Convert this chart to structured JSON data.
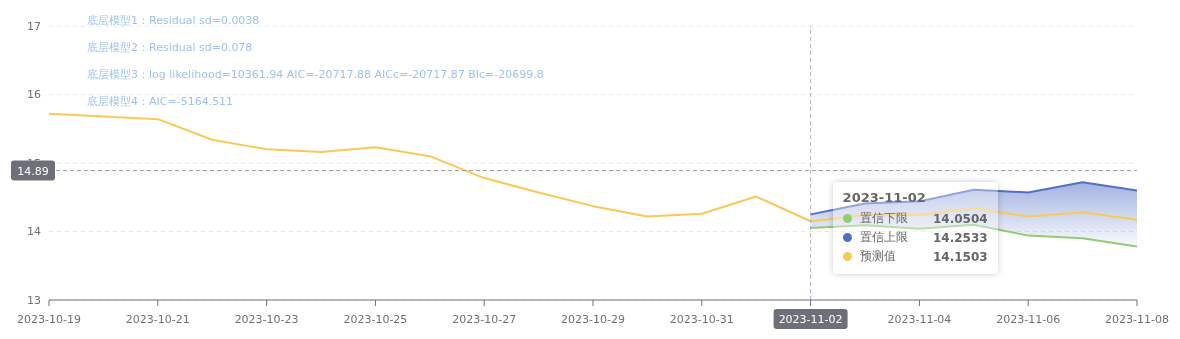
{
  "chart_data": {
    "type": "line",
    "x": [
      "2023-10-19",
      "2023-10-20",
      "2023-10-21",
      "2023-10-22",
      "2023-10-23",
      "2023-10-24",
      "2023-10-25",
      "2023-10-26",
      "2023-10-27",
      "2023-10-28",
      "2023-10-29",
      "2023-10-30",
      "2023-10-31",
      "2023-11-01",
      "2023-11-02",
      "2023-11-03",
      "2023-11-04",
      "2023-11-05",
      "2023-11-06",
      "2023-11-07",
      "2023-11-08"
    ],
    "series": [
      {
        "name": "置信下限",
        "color": "#91cc75",
        "values": [
          null,
          null,
          null,
          null,
          null,
          null,
          null,
          null,
          null,
          null,
          null,
          null,
          null,
          null,
          14.05,
          14.09,
          14.04,
          14.1,
          13.94,
          13.9,
          13.78
        ]
      },
      {
        "name": "置信上限",
        "color": "#5470c6",
        "values": [
          null,
          null,
          null,
          null,
          null,
          null,
          null,
          null,
          null,
          null,
          null,
          null,
          null,
          null,
          14.25,
          14.41,
          14.44,
          14.61,
          14.57,
          14.72,
          14.6
        ]
      },
      {
        "name": "预测值",
        "color": "#fac858",
        "values": [
          15.72,
          15.68,
          15.64,
          15.34,
          15.2,
          15.16,
          15.23,
          15.1,
          14.78,
          14.57,
          14.37,
          14.22,
          14.26,
          14.51,
          14.15,
          14.24,
          14.24,
          14.34,
          14.22,
          14.28,
          14.17
        ],
        "lower": [
          null,
          null,
          null,
          null,
          null,
          null,
          null,
          null,
          null,
          null,
          null,
          null,
          null,
          null,
          14.05,
          14.09,
          14.04,
          14.1,
          13.94,
          13.9,
          13.78
        ],
        "upper": [
          null,
          null,
          null,
          null,
          null,
          null,
          null,
          null,
          null,
          null,
          null,
          null,
          null,
          null,
          14.25,
          14.41,
          14.44,
          14.61,
          14.57,
          14.72,
          14.6
        ]
      }
    ],
    "xlim": [
      "2023-10-19",
      "2023-11-08"
    ],
    "xticks": [
      "2023-10-19",
      "2023-10-21",
      "2023-10-23",
      "2023-10-25",
      "2023-10-27",
      "2023-10-29",
      "2023-10-31",
      "2023-11-02",
      "2023-11-04",
      "2023-11-06",
      "2023-11-08"
    ],
    "ylim": [
      13,
      17
    ],
    "yticks": [
      13,
      14,
      15,
      16,
      17
    ],
    "grid": "y",
    "legend": "right",
    "ref_lines": [
      {
        "axis": "x",
        "value": "2023-11-02",
        "label": null,
        "line_style": "dashed"
      },
      {
        "axis": "y",
        "value": 14.89,
        "label": "14.89",
        "line_style": "dashed"
      }
    ],
    "annotations": [
      "底层模型1：Residual sd=0.0038",
      "底层模型2：Residual sd=0.078",
      "底层模型3：log likelihood=10361.94 AIC=-20717.88 AICc=-20717.87 BIc=-20699.8",
      "底层模型4：AIC=-5164.511",
      "2023-11-02",
      "14.0504",
      "14.2533",
      "14.1503"
    ]
  }
}
